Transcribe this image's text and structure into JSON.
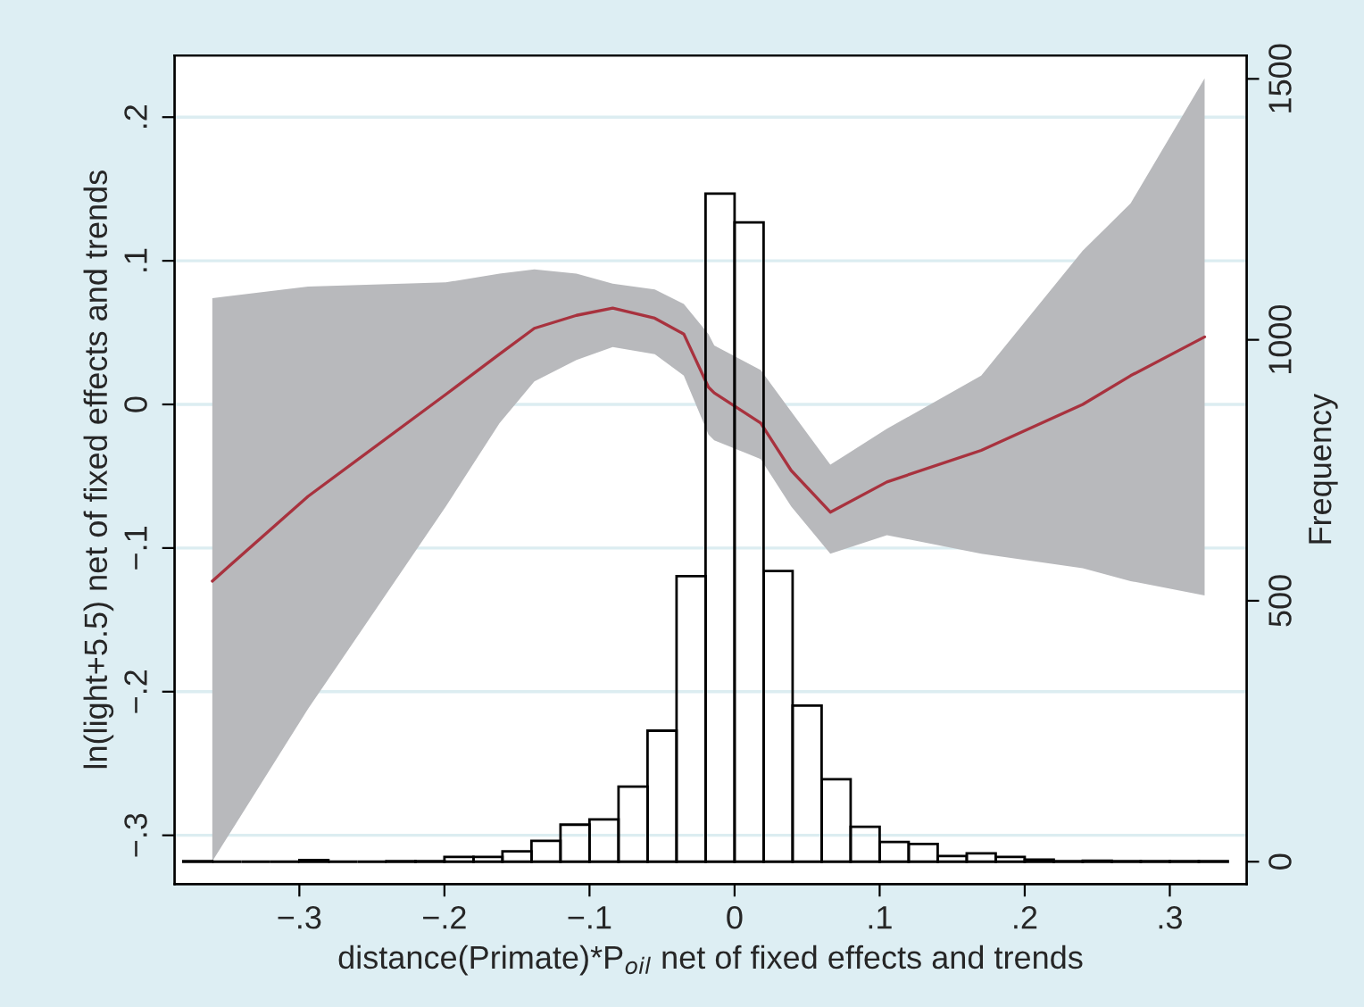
{
  "chart_data": {
    "type": "line",
    "xlabel": "distance(Primate)*P$_{oil}$ net of fixed effects and trends",
    "ylabel": "ln(light+5.5) net of fixed effects and trends",
    "y2label": "Frequency",
    "xlim": [
      -0.386,
      0.353
    ],
    "xticks": [
      {
        "value": -0.3,
        "label": "−.3"
      },
      {
        "value": -0.2,
        "label": "−.2"
      },
      {
        "value": -0.1,
        "label": "−.1"
      },
      0,
      {
        "value": 0.1,
        "label": ".1"
      },
      {
        "value": 0.2,
        "label": ".2"
      },
      {
        "value": 0.3,
        "label": ".3"
      }
    ],
    "ylim": [
      -0.334,
      0.243
    ],
    "yticks": [
      {
        "value": -0.3,
        "label": "−.3"
      },
      {
        "value": -0.2,
        "label": "−.2"
      },
      {
        "value": -0.1,
        "label": "−.1"
      },
      0,
      {
        "value": 0.1,
        "label": ".1"
      },
      {
        "value": 0.2,
        "label": ".2"
      }
    ],
    "y2lim": [
      -43,
      1545
    ],
    "y2ticks": [
      0,
      500,
      1000,
      1500
    ],
    "grid": "y",
    "series": [
      {
        "type": "histogram",
        "axis": "y2",
        "color": "#000000",
        "bins": [
          -0.38,
          -0.36,
          -0.34,
          -0.32,
          -0.3,
          -0.28,
          -0.26,
          -0.24,
          -0.22,
          -0.2,
          -0.18,
          -0.16,
          -0.14,
          -0.12,
          -0.1,
          -0.08,
          -0.06,
          -0.04,
          -0.02,
          0,
          0.02,
          0.04,
          0.06,
          0.08,
          0.1,
          0.12,
          0.14,
          0.16,
          0.18,
          0.2,
          0.22,
          0.24,
          0.26,
          0.28,
          0.3,
          0.32,
          0.34
        ],
        "values": [
          1,
          0,
          0,
          0,
          3,
          0,
          0,
          1,
          1,
          9,
          9,
          20,
          40,
          71,
          81,
          144,
          251,
          547,
          1280,
          1225,
          557,
          299,
          158,
          67,
          38,
          34,
          11,
          16,
          9,
          4,
          1,
          2,
          1,
          1,
          1,
          1
        ]
      },
      {
        "axis": "y",
        "color": "#a8323e",
        "x": [
          -0.36,
          -0.294,
          -0.199,
          -0.162,
          -0.138,
          -0.109,
          -0.084,
          -0.055,
          -0.035,
          -0.018,
          -0.014,
          0.018,
          0.039,
          0.066,
          0.105,
          0.17,
          0.24,
          0.273,
          0.324
        ],
        "values": [
          -0.123,
          -0.064,
          0.007,
          0.035,
          0.053,
          0.062,
          0.067,
          0.06,
          0.049,
          0.012,
          0.008,
          -0.013,
          -0.046,
          -0.075,
          -0.054,
          -0.032,
          0.0,
          0.02,
          0.047
        ],
        "lower": [
          -0.318,
          -0.212,
          -0.071,
          -0.013,
          0.016,
          0.031,
          0.04,
          0.035,
          0.02,
          -0.021,
          -0.025,
          -0.038,
          -0.071,
          -0.104,
          -0.091,
          -0.104,
          -0.114,
          -0.123,
          -0.133
        ],
        "upper": [
          0.074,
          0.082,
          0.085,
          0.091,
          0.094,
          0.091,
          0.084,
          0.08,
          0.07,
          0.049,
          0.041,
          0.024,
          -0.005,
          -0.042,
          -0.017,
          0.02,
          0.107,
          0.14,
          0.227
        ]
      }
    ]
  }
}
